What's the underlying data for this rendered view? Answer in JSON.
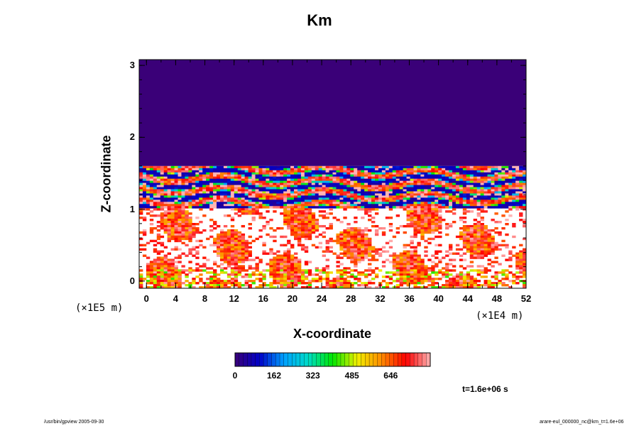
{
  "title": "Km",
  "chart_data": {
    "type": "heatmap",
    "title": "Km",
    "xlabel": "X-coordinate",
    "ylabel": "Z-coordinate",
    "x_scale_label": "(×1E4 m)",
    "y_scale_label": "(×1E5 m)",
    "xlim": [
      -1,
      52
    ],
    "ylim": [
      -0.1,
      3.08
    ],
    "x_ticks": [
      "0",
      "4",
      "8",
      "12",
      "16",
      "20",
      "24",
      "28",
      "32",
      "36",
      "40",
      "44",
      "48",
      "52"
    ],
    "y_ticks": [
      "0",
      "1",
      "2",
      "3"
    ],
    "grid": false,
    "colorbar": {
      "ticks": [
        "0",
        "162",
        "323",
        "485",
        "646"
      ],
      "tick_values": [
        0,
        162,
        323,
        485,
        646
      ],
      "range": [
        0,
        810
      ],
      "colormap": [
        "#3a0078",
        "#0000c8",
        "#00a0ff",
        "#00dcc8",
        "#00e600",
        "#f0f000",
        "#ff8c00",
        "#ff0000",
        "#ffb4b4"
      ]
    },
    "regions": [
      {
        "z_range": [
          1.6,
          3.08
        ],
        "value": 0,
        "description_value": "uniform minimum"
      },
      {
        "z_range": [
          1.0,
          1.6
        ],
        "value": "banded 0–646"
      },
      {
        "z_range": [
          -0.1,
          1.0
        ],
        "value": "patchy 320–800"
      }
    ]
  },
  "time_label": "t=1.6e+06 s",
  "footer_left": "/usr/bin/gpview 2005-09-30",
  "footer_right": "arare-eul_000000_nc@km_t=1.6e+06",
  "colors": {
    "upper_layer": "#7300a4",
    "frame": "#000000",
    "background": "#ffffff"
  }
}
